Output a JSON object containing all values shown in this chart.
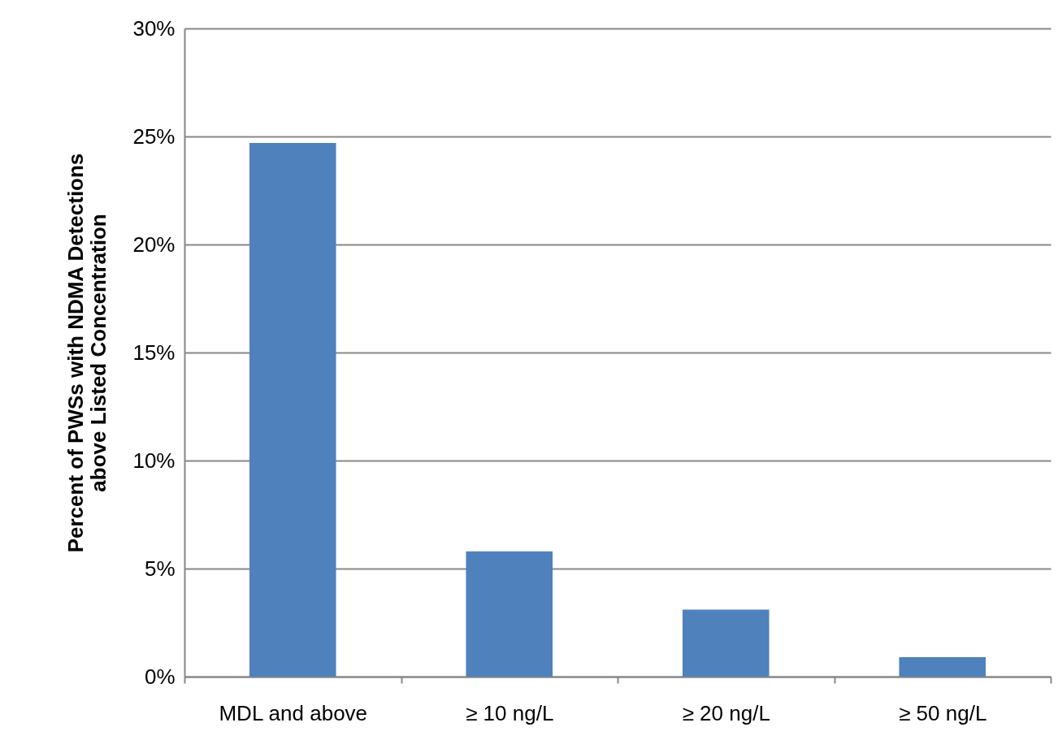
{
  "chart_data": {
    "type": "bar",
    "ylabel": "Percent of PWSs with NDMA Detections above Listed Concentration",
    "categories": [
      "MDL and  above",
      "≥ 10 ng/L",
      "≥ 20 ng/L",
      "≥ 50 ng/L"
    ],
    "values": [
      24.7,
      5.8,
      3.1,
      0.9
    ],
    "color": "#4f81bd",
    "ylim": [
      0,
      30
    ],
    "yticks": [
      {
        "value": 0,
        "label": "0%"
      },
      {
        "value": 5,
        "label": "5%"
      },
      {
        "value": 10,
        "label": "10%"
      },
      {
        "value": 15,
        "label": "15%"
      },
      {
        "value": 20,
        "label": "20%"
      },
      {
        "value": 25,
        "label": "25%"
      },
      {
        "value": 30,
        "label": "30%"
      }
    ],
    "grid": "y"
  }
}
